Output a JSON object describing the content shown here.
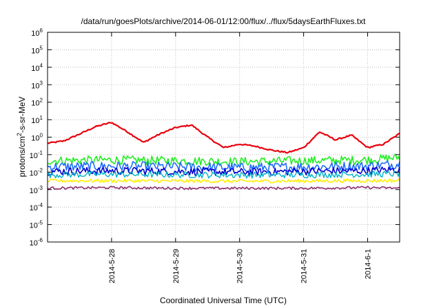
{
  "chart_data": {
    "type": "line",
    "title": "/data/run/goesPlots/archive/2014-06-01/12:00/flux/../flux/5daysEarthFluxes.txt",
    "xlabel": "Coordinated Universal Time (UTC)",
    "ylabel": "protons/cm2-s-sr-MeV",
    "ylabel_parts": {
      "pre": "protons/cm",
      "sup": "2",
      "post": "-s-sr-MeV"
    },
    "yscale": "log",
    "ylim": [
      1e-06,
      1000000.0
    ],
    "yticks": [
      {
        "base": "10",
        "exp": "-6"
      },
      {
        "base": "10",
        "exp": "-5"
      },
      {
        "base": "10",
        "exp": "-4"
      },
      {
        "base": "10",
        "exp": "-3"
      },
      {
        "base": "10",
        "exp": "-2"
      },
      {
        "base": "10",
        "exp": "-1"
      },
      {
        "base": "10",
        "exp": "0"
      },
      {
        "base": "10",
        "exp": "1"
      },
      {
        "base": "10",
        "exp": "2"
      },
      {
        "base": "10",
        "exp": "3"
      },
      {
        "base": "10",
        "exp": "4"
      },
      {
        "base": "10",
        "exp": "5"
      },
      {
        "base": "10",
        "exp": "6"
      }
    ],
    "xlim": [
      "2014-05-27T00:00",
      "2014-06-01T12:00"
    ],
    "xticks": [
      "2014-5-28",
      "2014-5-29",
      "2014-5-30",
      "2014-5-31",
      "2014-6-1"
    ],
    "xtick_dates": [
      "2014-05-28",
      "2014-05-29",
      "2014-05-30",
      "2014-05-31",
      "2014-06-01"
    ],
    "grid": true,
    "series": [
      {
        "color": "#e8000b",
        "width": 2.2,
        "noise": 0.04,
        "x": [
          "2014-05-27T00:00",
          "2014-05-27T06:00",
          "2014-05-27T12:00",
          "2014-05-27T18:00",
          "2014-05-28T00:00",
          "2014-05-28T06:00",
          "2014-05-28T12:00",
          "2014-05-28T18:00",
          "2014-05-29T00:00",
          "2014-05-29T06:00",
          "2014-05-29T12:00",
          "2014-05-29T18:00",
          "2014-05-30T00:00",
          "2014-05-30T06:00",
          "2014-05-30T12:00",
          "2014-05-30T18:00",
          "2014-05-31T00:00",
          "2014-05-31T06:00",
          "2014-05-31T12:00",
          "2014-05-31T18:00",
          "2014-06-01T00:00",
          "2014-06-01T06:00",
          "2014-06-01T12:00"
        ],
        "y": [
          0.45,
          0.6,
          1.5,
          4,
          7,
          2,
          0.5,
          1.5,
          3.5,
          5,
          1,
          0.25,
          0.4,
          0.3,
          0.18,
          0.13,
          0.25,
          2,
          0.7,
          1.3,
          0.25,
          0.4,
          1.6
        ]
      },
      {
        "color": "#22ee22",
        "width": 1.6,
        "noise": 0.25,
        "x": [
          "2014-05-27T00:00",
          "2014-05-28T00:00",
          "2014-05-29T00:00",
          "2014-05-30T00:00",
          "2014-05-31T00:00",
          "2014-06-01T00:00",
          "2014-06-01T12:00"
        ],
        "y": [
          0.045,
          0.05,
          0.045,
          0.04,
          0.045,
          0.05,
          0.07
        ]
      },
      {
        "color": "#1e6cff",
        "width": 1.6,
        "noise": 0.28,
        "x": [
          "2014-05-27T00:00",
          "2014-05-28T00:00",
          "2014-05-29T00:00",
          "2014-05-30T00:00",
          "2014-05-31T00:00",
          "2014-06-01T00:00",
          "2014-06-01T12:00"
        ],
        "y": [
          0.02,
          0.022,
          0.02,
          0.018,
          0.02,
          0.022,
          0.03
        ]
      },
      {
        "color": "#0000cc",
        "width": 1.6,
        "noise": 0.22,
        "x": [
          "2014-05-27T00:00",
          "2014-05-28T00:00",
          "2014-05-29T00:00",
          "2014-05-30T00:00",
          "2014-05-31T00:00",
          "2014-06-01T00:00",
          "2014-06-01T12:00"
        ],
        "y": [
          0.011,
          0.012,
          0.011,
          0.01,
          0.011,
          0.012,
          0.014
        ]
      },
      {
        "color": "#00b2c8",
        "width": 1.4,
        "noise": 0.18,
        "x": [
          "2014-05-27T00:00",
          "2014-05-28T00:00",
          "2014-05-29T00:00",
          "2014-05-30T00:00",
          "2014-05-31T00:00",
          "2014-06-01T00:00",
          "2014-06-01T12:00"
        ],
        "y": [
          0.007,
          0.0075,
          0.007,
          0.0068,
          0.007,
          0.0075,
          0.008
        ]
      },
      {
        "color": "#ffee00",
        "width": 1.6,
        "noise": 0.1,
        "x": [
          "2014-05-27T00:00",
          "2014-05-28T00:00",
          "2014-05-29T00:00",
          "2014-05-30T00:00",
          "2014-05-31T00:00",
          "2014-06-01T00:00",
          "2014-06-01T12:00"
        ],
        "y": [
          0.0032,
          0.0032,
          0.0031,
          0.003,
          0.0031,
          0.0032,
          0.0033
        ]
      },
      {
        "color": "#8b2a6e",
        "width": 1.6,
        "noise": 0.07,
        "x": [
          "2014-05-27T00:00",
          "2014-05-28T00:00",
          "2014-05-29T00:00",
          "2014-05-30T00:00",
          "2014-05-31T00:00",
          "2014-06-01T00:00",
          "2014-06-01T12:00"
        ],
        "y": [
          0.0012,
          0.0013,
          0.0012,
          0.0012,
          0.0012,
          0.0013,
          0.0012
        ]
      }
    ]
  }
}
